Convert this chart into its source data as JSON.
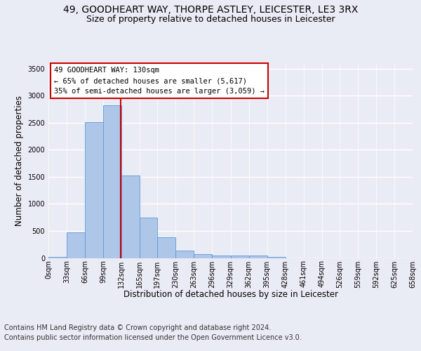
{
  "title_line1": "49, GOODHEART WAY, THORPE ASTLEY, LEICESTER, LE3 3RX",
  "title_line2": "Size of property relative to detached houses in Leicester",
  "xlabel": "Distribution of detached houses by size in Leicester",
  "ylabel": "Number of detached properties",
  "bin_edges": [
    0,
    33,
    66,
    99,
    132,
    165,
    197,
    230,
    263,
    296,
    329,
    362,
    395,
    428,
    461,
    494,
    526,
    559,
    592,
    625,
    658
  ],
  "bin_labels": [
    "0sqm",
    "33sqm",
    "66sqm",
    "99sqm",
    "132sqm",
    "165sqm",
    "197sqm",
    "230sqm",
    "263sqm",
    "296sqm",
    "329sqm",
    "362sqm",
    "395sqm",
    "428sqm",
    "461sqm",
    "494sqm",
    "526sqm",
    "559sqm",
    "592sqm",
    "625sqm",
    "658sqm"
  ],
  "counts": [
    25,
    480,
    2510,
    2820,
    1520,
    750,
    380,
    140,
    75,
    50,
    50,
    50,
    25,
    0,
    0,
    0,
    0,
    0,
    0,
    0
  ],
  "bar_color": "#aec6e8",
  "bar_edge_color": "#5c9bd6",
  "vline_x": 130,
  "vline_color": "#cc0000",
  "annotation_title": "49 GOODHEART WAY: 130sqm",
  "annotation_line1": "← 65% of detached houses are smaller (5,617)",
  "annotation_line2": "35% of semi-detached houses are larger (3,059) →",
  "annotation_box_color": "#ffffff",
  "annotation_box_edge": "#cc0000",
  "ylim": [
    0,
    3600
  ],
  "yticks": [
    0,
    500,
    1000,
    1500,
    2000,
    2500,
    3000,
    3500
  ],
  "footer_line1": "Contains HM Land Registry data © Crown copyright and database right 2024.",
  "footer_line2": "Contains public sector information licensed under the Open Government Licence v3.0.",
  "bg_color": "#eaecf5",
  "plot_bg_color": "#eaecf5",
  "grid_color": "#ffffff",
  "title_fontsize": 10,
  "subtitle_fontsize": 9,
  "label_fontsize": 8.5,
  "tick_fontsize": 7,
  "footer_fontsize": 7,
  "ann_fontsize": 7.5
}
